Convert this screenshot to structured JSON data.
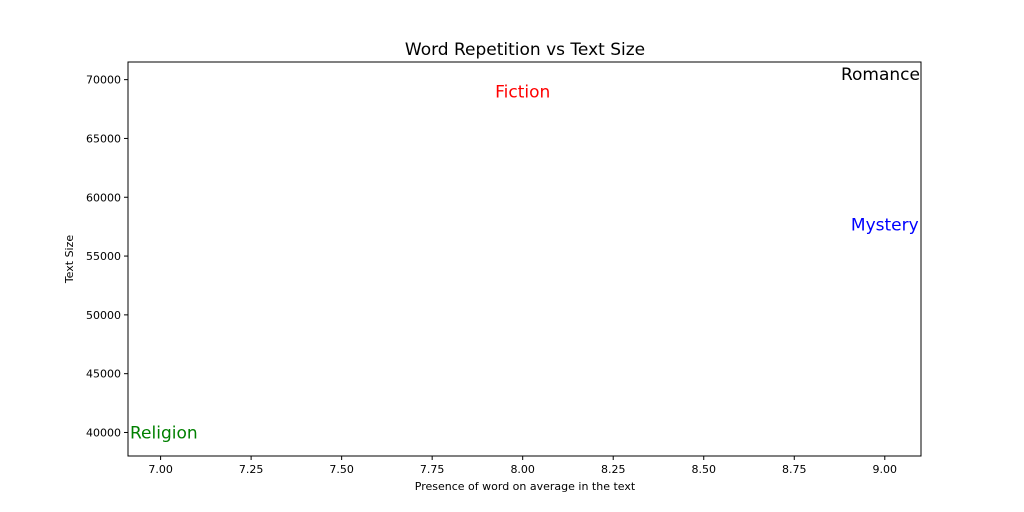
{
  "chart_data": {
    "type": "scatter",
    "title": "Word Repetition vs Text Size",
    "xlabel": "Presence of word on average in the text",
    "ylabel": "Text Size",
    "xlim": [
      6.91,
      9.1
    ],
    "ylim": [
      38000,
      71500
    ],
    "xticks": [
      "7.00",
      "7.25",
      "7.50",
      "7.75",
      "8.00",
      "8.25",
      "8.50",
      "8.75",
      "9.00"
    ],
    "yticks": [
      "40000",
      "45000",
      "50000",
      "55000",
      "60000",
      "65000",
      "70000"
    ],
    "grid": false,
    "points": [
      {
        "label": "Fiction",
        "x": 8.0,
        "y": 69000,
        "color": "#ff0000"
      },
      {
        "label": "Romance",
        "x": 9.0,
        "y": 70500,
        "color": "#000000"
      },
      {
        "label": "Mystery",
        "x": 9.0,
        "y": 57700,
        "color": "#0000ff"
      },
      {
        "label": "Religion",
        "x": 7.0,
        "y": 40000,
        "color": "#008000"
      }
    ]
  }
}
